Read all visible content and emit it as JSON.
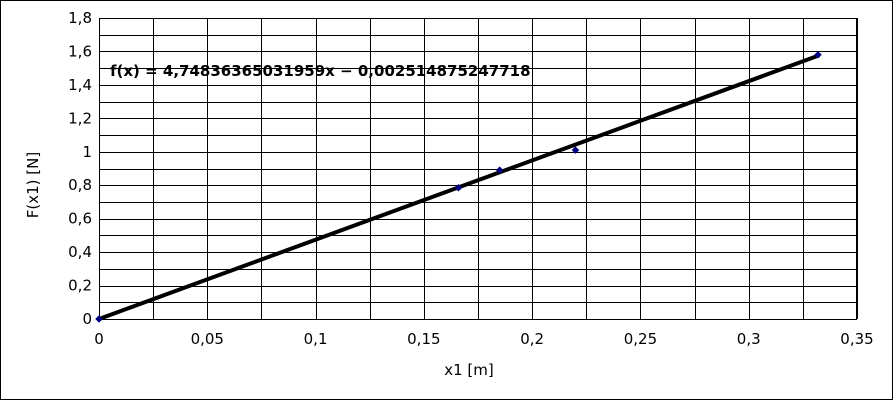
{
  "chart_data": {
    "type": "scatter",
    "title": "",
    "xlabel": "x1 [m]",
    "ylabel": "F(x1) [N]",
    "xlim": [
      0,
      0.35
    ],
    "ylim": [
      0,
      1.8
    ],
    "x_ticks": [
      0,
      0.05,
      0.1,
      0.15,
      0.2,
      0.25,
      0.3,
      0.35
    ],
    "x_tick_labels": [
      "0",
      "0,05",
      "0,1",
      "0,15",
      "0,2",
      "0,25",
      "0,3",
      "0,35"
    ],
    "y_ticks": [
      0,
      0.2,
      0.4,
      0.6,
      0.8,
      1,
      1.2,
      1.4,
      1.6,
      1.8
    ],
    "y_tick_labels": [
      "0",
      "0,2",
      "0,4",
      "0,6",
      "0,8",
      "1",
      "1,2",
      "1,4",
      "1,6",
      "1,8"
    ],
    "grid": "horizontal-and-vertical",
    "series": [
      {
        "x": [
          0,
          0.166,
          0.185,
          0.22,
          0.332
        ],
        "y": [
          0,
          0.785,
          0.89,
          1.01,
          1.58
        ],
        "color": "#00007f",
        "marker": "diamond"
      }
    ],
    "trendline": {
      "type": "linear",
      "slope": 4.74836365031959,
      "intercept": -0.002514875247718,
      "x_range": [
        0,
        0.332
      ],
      "color": "#000000",
      "label": "f(x) = 4,74836365031959x − 0,002514875247718"
    },
    "colors": {
      "grid": "#000000",
      "background": "#ffffff",
      "points": "#00007f",
      "trendline": "#000000"
    }
  }
}
